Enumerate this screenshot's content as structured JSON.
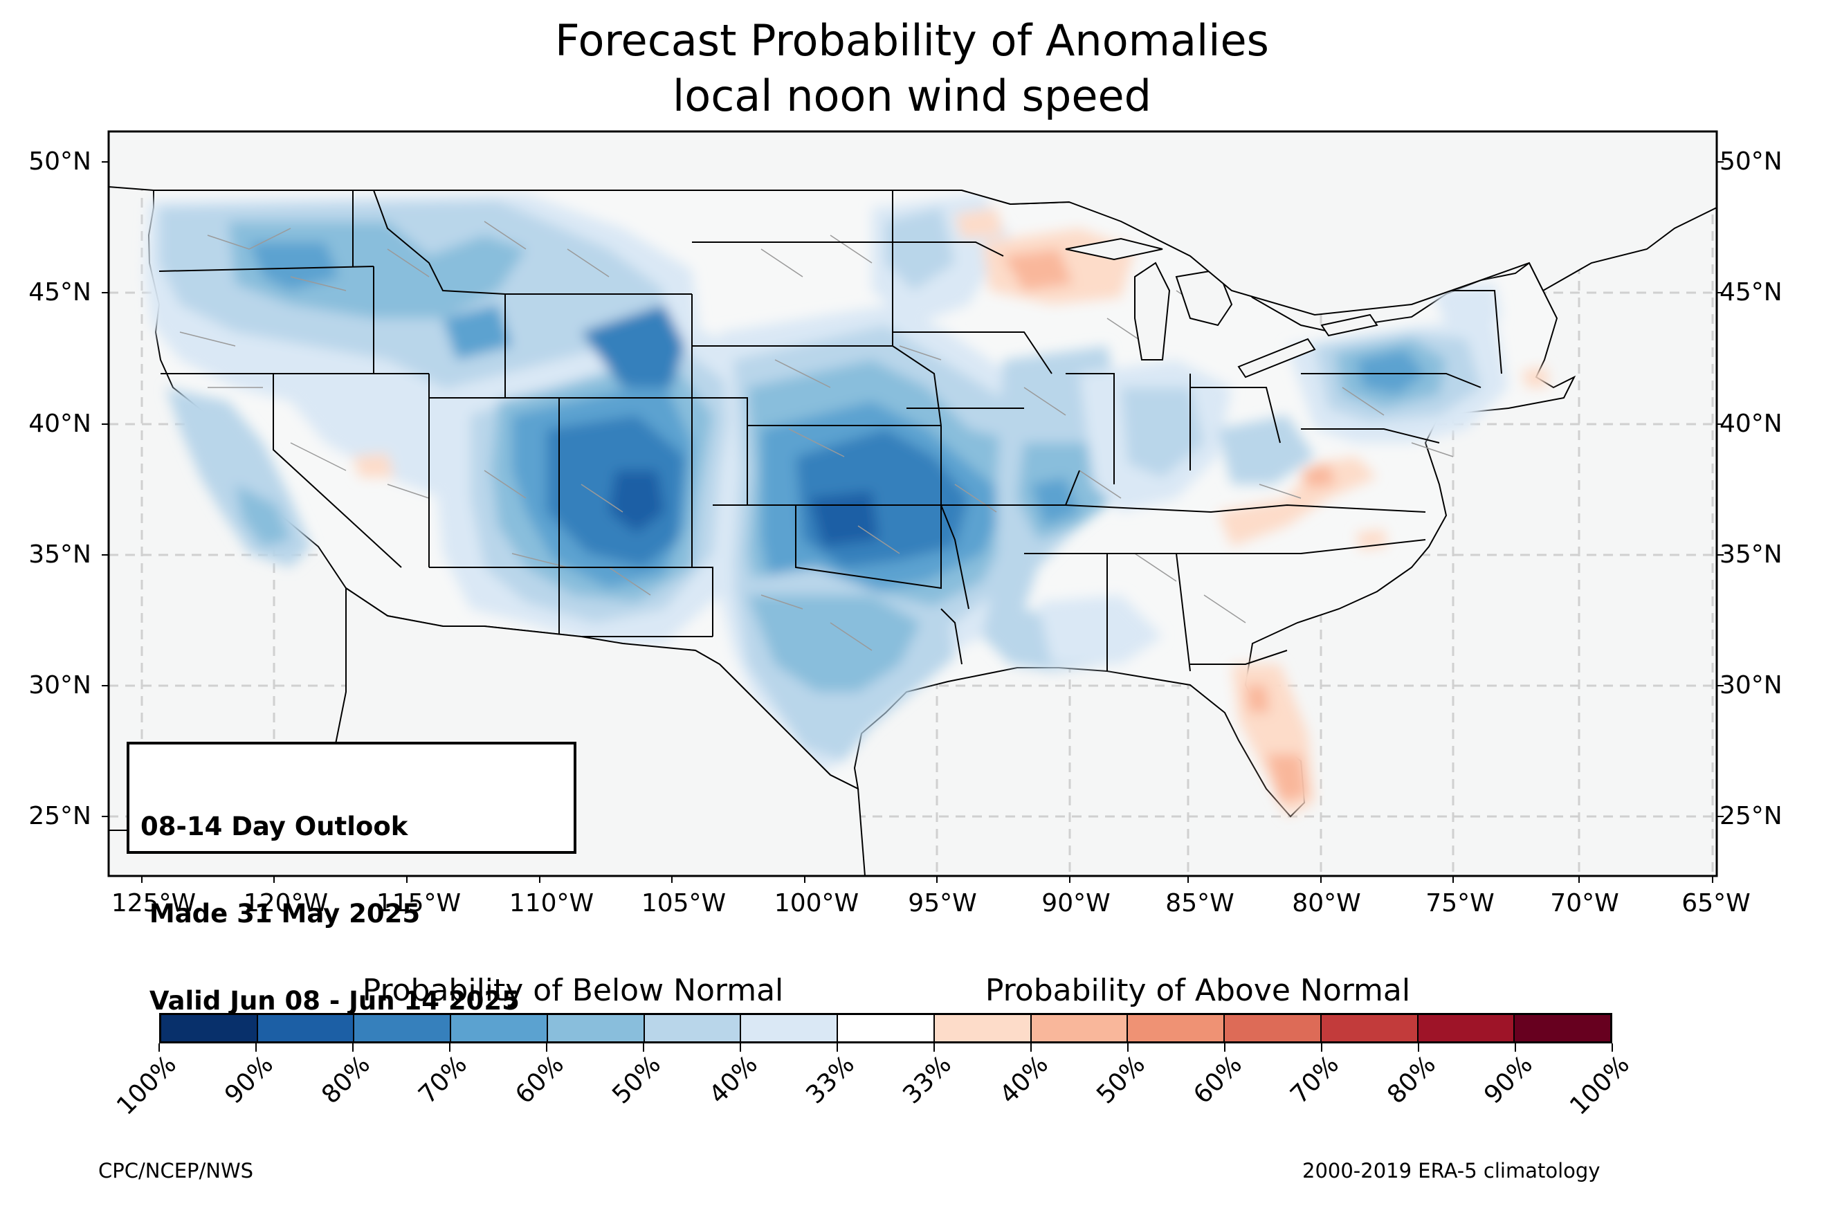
{
  "title": {
    "line1": "Forecast Probability of Anomalies",
    "line2": "local noon wind speed"
  },
  "map": {
    "lat_labels": [
      "50°N",
      "45°N",
      "40°N",
      "35°N",
      "30°N",
      "25°N"
    ],
    "lon_labels": [
      "125°W",
      "120°W",
      "115°W",
      "110°W",
      "105°W",
      "100°W",
      "95°W",
      "90°W",
      "85°W",
      "80°W",
      "75°W",
      "70°W",
      "65°W"
    ],
    "background_color": "#f5f6f6",
    "gridline_color": "#d0d0d0",
    "state_border_color": "#000000",
    "county_border_color": "#9a9a9a",
    "anomaly_regions": [
      {
        "region": "Pacific Northwest / Northern Rockies",
        "category": "below",
        "level": "50-60%"
      },
      {
        "region": "Central Rockies / Colorado / Utah",
        "category": "below",
        "level": "70-80%"
      },
      {
        "region": "Southern Plains / Kansas / Oklahoma",
        "category": "below",
        "level": "70-80%"
      },
      {
        "region": "Texas",
        "category": "below",
        "level": "50-60%"
      },
      {
        "region": "Pennsylvania / New York",
        "category": "below",
        "level": "60-70%"
      },
      {
        "region": "Mississippi Valley",
        "category": "below",
        "level": "50-60%"
      },
      {
        "region": "Wisconsin / Upper Michigan",
        "category": "above",
        "level": "40-50%"
      },
      {
        "region": "Florida",
        "category": "above",
        "level": "40-50%"
      },
      {
        "region": "Appalachians",
        "category": "above",
        "level": "33-40%"
      }
    ]
  },
  "outlook_box": {
    "line1": "08-14 Day Outlook",
    "line2": " Made 31 May 2025",
    "line3": " Valid Jun 08 - Jun 14 2025"
  },
  "colorbar": {
    "below_label": "Probability of Below Normal",
    "above_label": "Probability of Above Normal",
    "colors": [
      "#08306b",
      "#1c5fa5",
      "#3680bc",
      "#5ba2d0",
      "#89bedc",
      "#b9d6ea",
      "#dae8f5",
      "#ffffff",
      "#fddcc9",
      "#f9b79b",
      "#ef9274",
      "#dd6b57",
      "#c23b3b",
      "#9e1428",
      "#67001f"
    ],
    "tick_labels": [
      "100%",
      "90%",
      "80%",
      "70%",
      "60%",
      "50%",
      "40%",
      "33%",
      "33%",
      "40%",
      "50%",
      "60%",
      "70%",
      "80%",
      "90%",
      "100%"
    ]
  },
  "credits": {
    "left": "CPC/NCEP/NWS",
    "right": "2000-2019 ERA-5 climatology"
  }
}
